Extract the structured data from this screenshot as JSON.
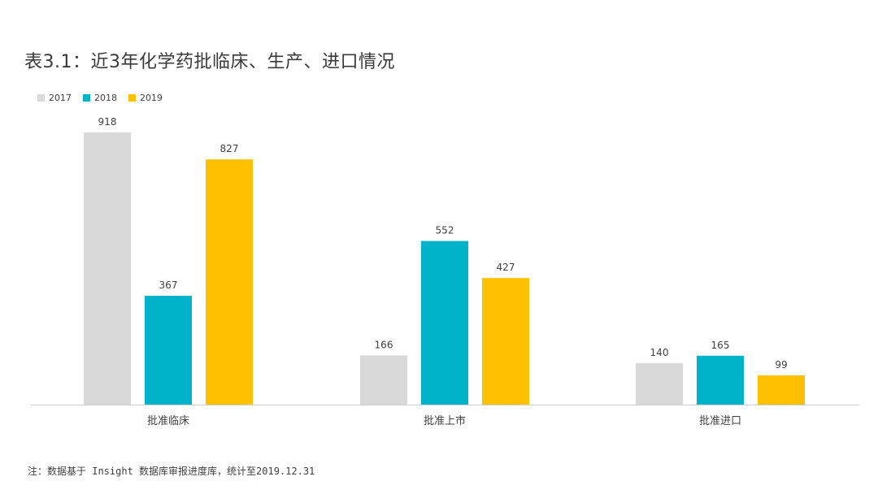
{
  "title": "表3.1：近3年化学药批临床、生产、进口情况",
  "note": "注：数据基于 Insight 数据库审报进度库，统计至2019.12.31",
  "colors": {
    "s2017": "#d9d9d9",
    "s2018": "#00b3c8",
    "s2019": "#ffc000",
    "axis": "#d0d0d0",
    "text": "#404040"
  },
  "chart_data": {
    "type": "bar",
    "title": "表3.1：近3年化学药批临床、生产、进口情况",
    "categories": [
      "批准临床",
      "批准上市",
      "批准进口"
    ],
    "series": [
      {
        "name": "2017",
        "values": [
          918,
          166,
          140
        ]
      },
      {
        "name": "2018",
        "values": [
          367,
          552,
          165
        ]
      },
      {
        "name": "2019",
        "values": [
          827,
          427,
          99
        ]
      }
    ],
    "xlabel": "",
    "ylabel": "",
    "ylim": [
      0,
      918
    ],
    "grid": false,
    "legend": "top-left",
    "data_labels": true
  }
}
